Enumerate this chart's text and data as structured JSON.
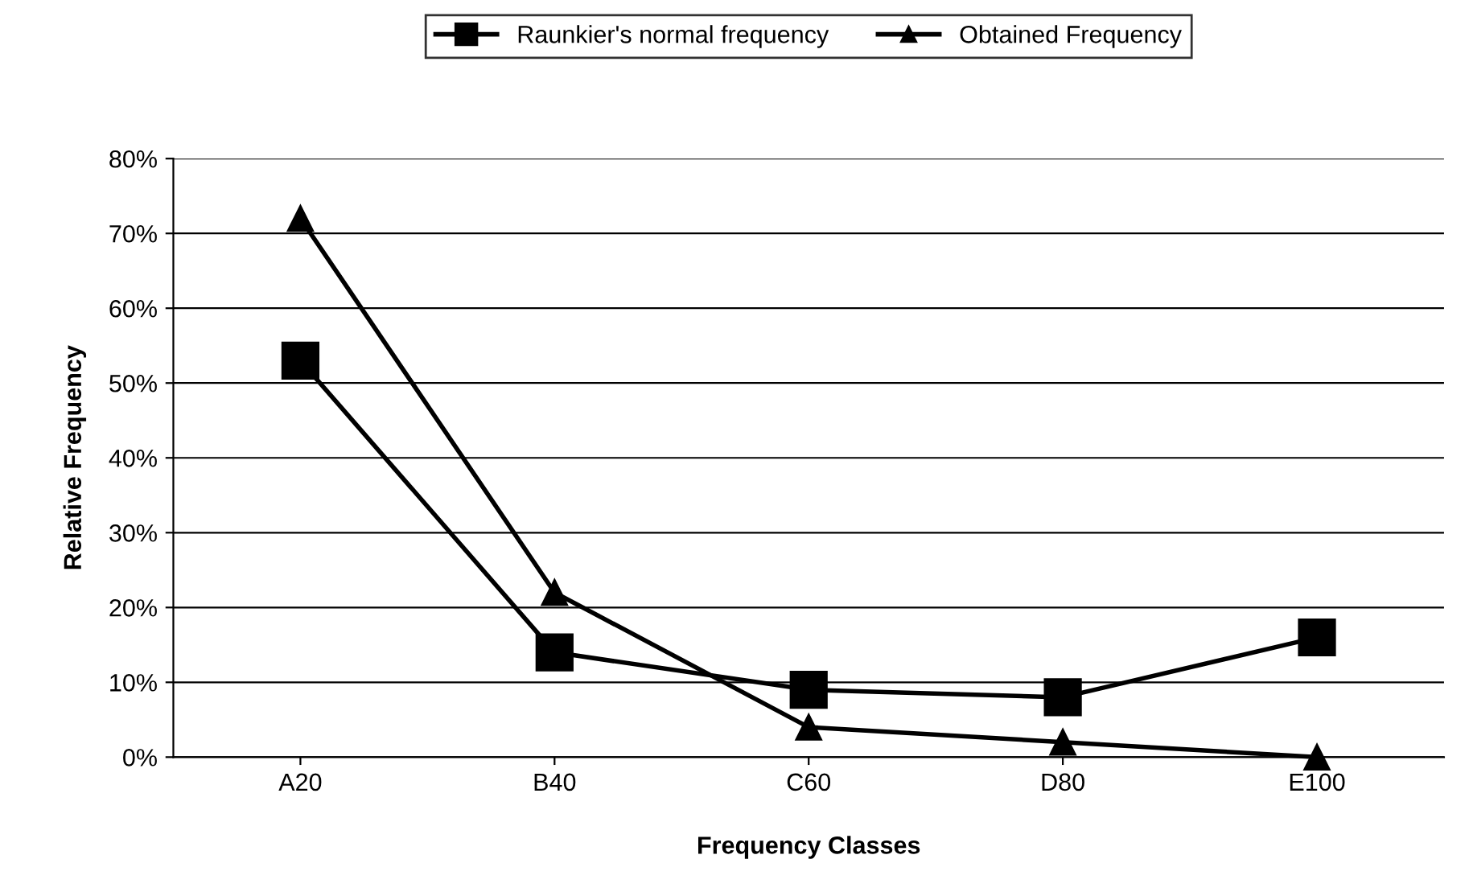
{
  "chart_data": {
    "type": "line",
    "xlabel": "Frequency Classes",
    "ylabel": "Relative Frequency",
    "categories": [
      "A20",
      "B40",
      "C60",
      "D80",
      "E100"
    ],
    "series": [
      {
        "name": "Raunkier's normal frequency",
        "color": "#000000",
        "marker": "square",
        "values": [
          53,
          14,
          9,
          8,
          16
        ]
      },
      {
        "name": "Obtained Frequency",
        "color": "#000000",
        "marker": "triangle",
        "values": [
          72,
          22,
          4,
          2,
          0
        ]
      }
    ],
    "ylim": [
      0,
      80
    ],
    "yticks": [
      {
        "value": 0,
        "label": "0%"
      },
      {
        "value": 10,
        "label": "10%"
      },
      {
        "value": 20,
        "label": "20%"
      },
      {
        "value": 30,
        "label": "30%"
      },
      {
        "value": 40,
        "label": "40%"
      },
      {
        "value": 50,
        "label": "50%"
      },
      {
        "value": 60,
        "label": "60%"
      },
      {
        "value": 70,
        "label": "70%"
      },
      {
        "value": 80,
        "label": "80%"
      }
    ],
    "grid": "y",
    "legend": "top",
    "line_style": "solid"
  }
}
